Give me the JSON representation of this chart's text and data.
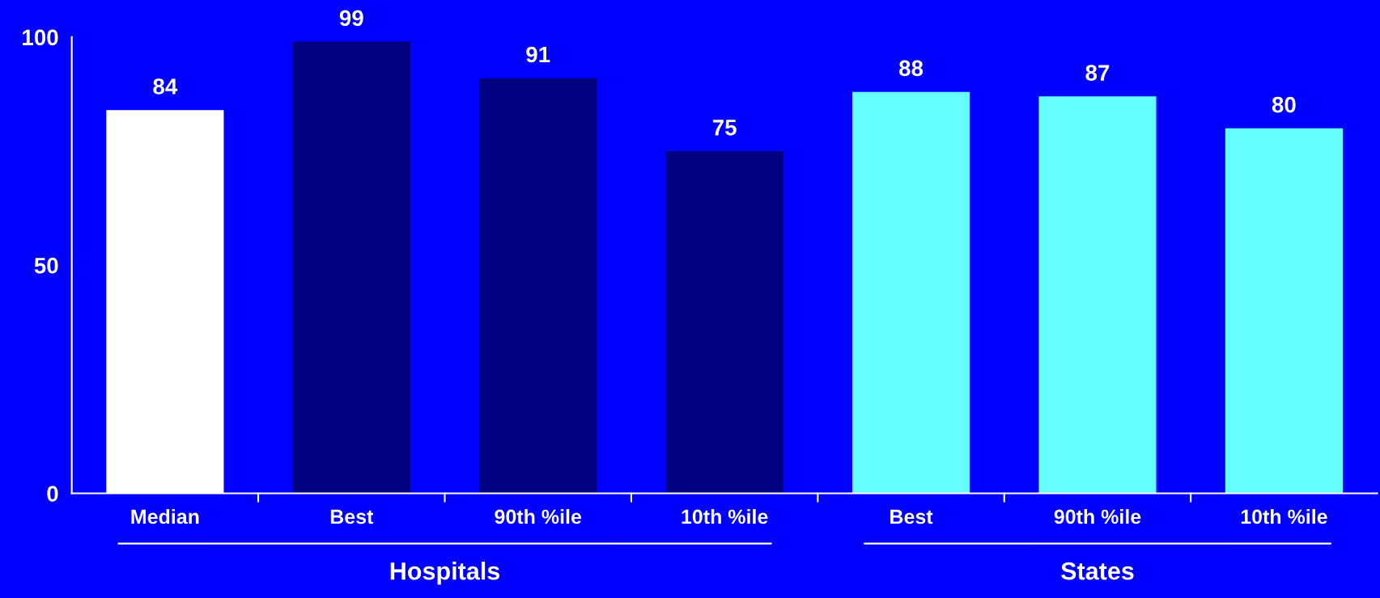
{
  "chart_data": {
    "type": "bar",
    "categories": [
      "Median",
      "Best",
      "90th %ile",
      "10th %ile",
      "Best",
      "90th %ile",
      "10th %ile"
    ],
    "values": [
      84,
      99,
      91,
      75,
      88,
      87,
      80
    ],
    "colors": [
      "#ffffff",
      "#000080",
      "#000080",
      "#000080",
      "#66ffff",
      "#66ffff",
      "#66ffff"
    ],
    "ylim": [
      0,
      100
    ],
    "yticks": [
      0,
      50,
      100
    ],
    "data_labels": true,
    "grid": false,
    "legend": false,
    "annotations": [
      "Hospitals",
      "States"
    ]
  }
}
